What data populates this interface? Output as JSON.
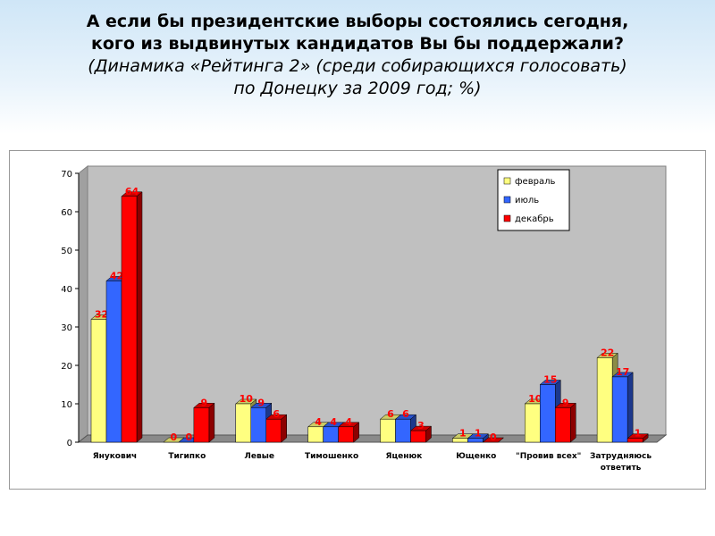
{
  "chart_data": {
    "type": "bar3d",
    "title": [
      "А если бы президентские выборы состоялись сегодня,",
      "кого из выдвинутых кандидатов Вы бы поддержали?",
      "(Динамика «Рейтинга 2» (среди собирающихся голосовать)",
      "по Донецку за 2009 год; %)"
    ],
    "categories": [
      "Янукович",
      "Тигипко",
      "Левые",
      "Тимошенко",
      "Яценюк",
      "Ющенко",
      "\"Провив всех\"",
      "Затрудняюсь ответить"
    ],
    "series": [
      {
        "name": "февраль",
        "color": "#ffff80",
        "values": [
          32,
          0,
          10,
          4,
          6,
          1,
          10,
          22
        ]
      },
      {
        "name": "июль",
        "color": "#3366ff",
        "values": [
          42,
          0,
          9,
          4,
          6,
          1,
          15,
          17
        ]
      },
      {
        "name": "декабрь",
        "color": "#ff0000",
        "values": [
          64,
          9,
          6,
          4,
          3,
          0,
          9,
          1
        ]
      }
    ],
    "ylim": [
      0,
      70
    ],
    "yticks": [
      0,
      10,
      20,
      30,
      40,
      50,
      60,
      70
    ],
    "legend": "upper-right"
  }
}
